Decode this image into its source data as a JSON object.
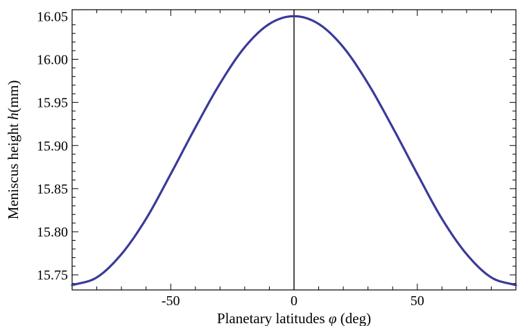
{
  "chart_data": {
    "type": "line",
    "title": "",
    "xlabel": {
      "prefix": "Planetary latitudes ",
      "symbol": "φ",
      "suffix": " (deg)"
    },
    "ylabel": {
      "prefix": "Meniscus height ",
      "symbol": "h",
      "suffix": "(mm)"
    },
    "xlim": [
      -90,
      90
    ],
    "ylim": [
      15.7325,
      16.0575
    ],
    "xticks": [
      -50,
      0,
      50
    ],
    "xtick_labels": [
      "-50",
      "0",
      "50"
    ],
    "yticks": [
      15.75,
      15.8,
      15.85,
      15.9,
      15.95,
      16.0,
      16.05
    ],
    "ytick_labels": [
      "15.75",
      "15.80",
      "15.85",
      "15.90",
      "15.95",
      "16.00",
      "16.05"
    ],
    "grid": false,
    "vertical_reference_line_x": 0,
    "series": [
      {
        "color": "#3a3a99",
        "x": [
          -90,
          -80,
          -70,
          -60,
          -50,
          -40,
          -30,
          -20,
          -10,
          0,
          10,
          20,
          30,
          40,
          50,
          60,
          70,
          80,
          90
        ],
        "y": [
          15.738,
          15.747,
          15.774,
          15.815,
          15.867,
          15.921,
          15.972,
          16.014,
          16.041,
          16.05,
          16.041,
          16.014,
          15.972,
          15.921,
          15.867,
          15.815,
          15.774,
          15.747,
          15.738
        ]
      }
    ]
  }
}
